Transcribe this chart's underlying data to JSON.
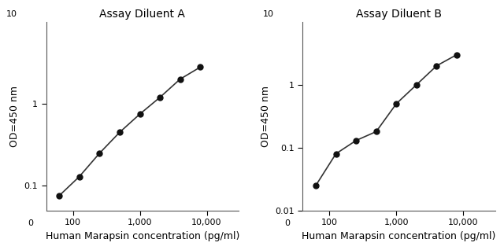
{
  "panel_A": {
    "title": "Assay Diluent A",
    "x": [
      62.5,
      125,
      250,
      500,
      1000,
      2000,
      4000,
      8000
    ],
    "y": [
      0.076,
      0.13,
      0.25,
      0.45,
      0.75,
      1.2,
      2.0,
      2.8
    ],
    "xlim": [
      40,
      30000
    ],
    "ylim": [
      0.05,
      10
    ],
    "xlabel": "Human Marapsin concentration (pg/ml)",
    "ylabel": "OD=450 nm",
    "xticks": [
      100,
      1000,
      10000
    ],
    "xtick_labels": [
      "100",
      "1,000",
      "10,000"
    ],
    "yticks": [
      0.1,
      1
    ],
    "ytick_labels": [
      "0.1",
      "1"
    ]
  },
  "panel_B": {
    "title": "Assay Diluent B",
    "x": [
      62.5,
      125,
      250,
      500,
      1000,
      2000,
      4000,
      8000
    ],
    "y": [
      0.025,
      0.08,
      0.13,
      0.18,
      0.5,
      1.0,
      2.0,
      3.0
    ],
    "xlim": [
      40,
      30000
    ],
    "ylim": [
      0.01,
      10
    ],
    "xlabel": "Human Marapsin concentration (pg/ml)",
    "ylabel": "OD=450 nm",
    "xticks": [
      100,
      1000,
      10000
    ],
    "xtick_labels": [
      "100",
      "1,000",
      "10,000"
    ],
    "yticks": [
      0.01,
      0.1,
      1
    ],
    "ytick_labels": [
      "0.01",
      "0.1",
      "1"
    ]
  },
  "line_color": "#333333",
  "marker_color": "#111111",
  "marker_size": 5,
  "line_width": 1.2,
  "bg_color": "#ffffff",
  "title_fontsize": 10,
  "label_fontsize": 9,
  "tick_fontsize": 8
}
